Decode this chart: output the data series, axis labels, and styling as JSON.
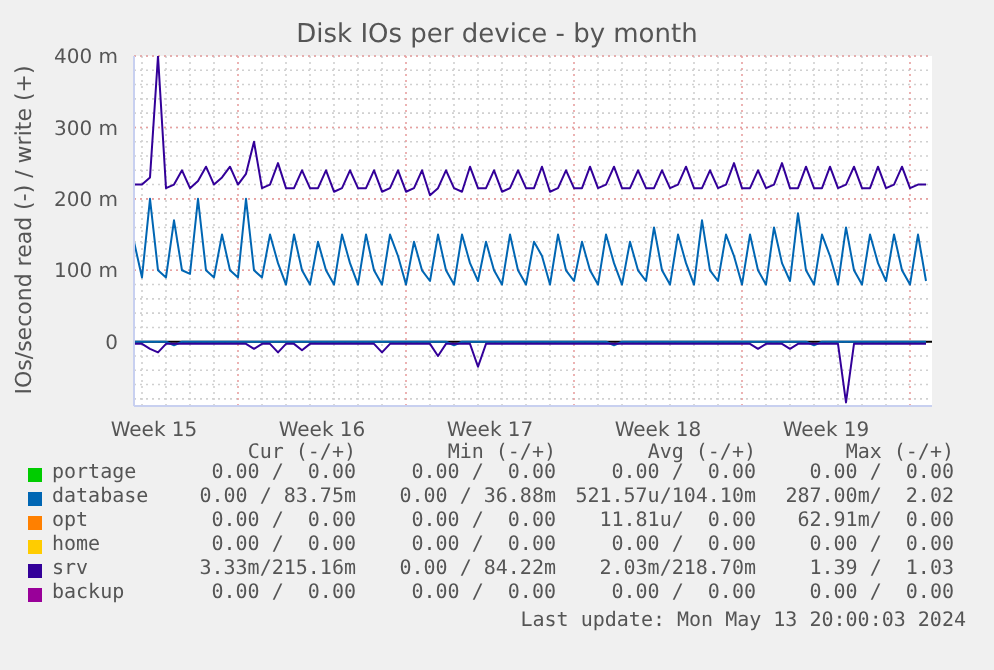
{
  "chart_data": {
    "type": "line",
    "title": "Disk IOs per device - by month",
    "ylabel": "IOs/second read (-) / write (+)",
    "x": [
      "2024-04-10T16:00",
      "2024-04-11T00:00",
      "2024-04-11T08:00",
      "2024-04-11T16:00",
      "2024-04-12T00:00",
      "2024-04-12T08:00",
      "2024-04-12T16:00",
      "2024-04-13T00:00",
      "2024-04-13T08:00",
      "2024-04-13T16:00",
      "2024-04-14T00:00",
      "2024-04-14T08:00",
      "2024-04-14T16:00",
      "2024-04-15T00:00",
      "2024-04-15T08:00",
      "2024-04-15T16:00",
      "2024-04-16T00:00",
      "2024-04-16T08:00",
      "2024-04-16T16:00",
      "2024-04-17T00:00",
      "2024-04-17T08:00",
      "2024-04-17T16:00",
      "2024-04-18T00:00",
      "2024-04-18T08:00",
      "2024-04-18T16:00",
      "2024-04-19T00:00",
      "2024-04-19T08:00",
      "2024-04-19T16:00",
      "2024-04-20T00:00",
      "2024-04-20T08:00",
      "2024-04-20T16:00",
      "2024-04-21T00:00",
      "2024-04-21T08:00",
      "2024-04-21T16:00",
      "2024-04-22T00:00",
      "2024-04-22T08:00",
      "2024-04-22T16:00",
      "2024-04-23T00:00",
      "2024-04-23T08:00",
      "2024-04-23T16:00",
      "2024-04-24T00:00",
      "2024-04-24T08:00",
      "2024-04-24T16:00",
      "2024-04-25T00:00",
      "2024-04-25T08:00",
      "2024-04-25T16:00",
      "2024-04-26T00:00",
      "2024-04-26T08:00",
      "2024-04-26T16:00",
      "2024-04-27T00:00",
      "2024-04-27T08:00",
      "2024-04-27T16:00",
      "2024-04-28T00:00",
      "2024-04-28T08:00",
      "2024-04-28T16:00",
      "2024-04-29T00:00",
      "2024-04-29T08:00",
      "2024-04-29T16:00",
      "2024-04-30T00:00",
      "2024-04-30T08:00",
      "2024-04-30T16:00",
      "2024-05-01T00:00",
      "2024-05-01T08:00",
      "2024-05-01T16:00",
      "2024-05-02T00:00",
      "2024-05-02T08:00",
      "2024-05-02T16:00",
      "2024-05-03T00:00",
      "2024-05-03T08:00",
      "2024-05-03T16:00",
      "2024-05-04T00:00",
      "2024-05-04T08:00",
      "2024-05-04T16:00",
      "2024-05-05T00:00",
      "2024-05-05T08:00",
      "2024-05-05T16:00",
      "2024-05-06T00:00",
      "2024-05-06T08:00",
      "2024-05-06T16:00",
      "2024-05-07T00:00",
      "2024-05-07T08:00",
      "2024-05-07T16:00",
      "2024-05-08T00:00",
      "2024-05-08T08:00",
      "2024-05-08T16:00",
      "2024-05-09T00:00",
      "2024-05-09T08:00",
      "2024-05-09T16:00",
      "2024-05-10T00:00",
      "2024-05-10T08:00",
      "2024-05-10T16:00",
      "2024-05-11T00:00",
      "2024-05-11T08:00",
      "2024-05-11T16:00",
      "2024-05-12T00:00",
      "2024-05-12T08:00",
      "2024-05-12T16:00",
      "2024-05-13T00:00",
      "2024-05-13T08:00",
      "2024-05-13T16:00"
    ],
    "series": [
      {
        "name": "portage",
        "color": "#00cc00",
        "values": [
          null,
          null,
          null,
          null,
          null,
          null,
          null,
          null,
          null,
          null,
          null,
          null,
          null,
          null,
          null,
          null,
          null,
          null,
          null,
          null,
          null,
          null,
          null,
          null,
          null,
          null,
          null,
          null,
          null,
          null,
          null,
          null,
          null,
          null,
          null,
          null,
          null,
          null,
          null,
          null,
          null,
          null,
          null,
          null,
          null,
          null,
          null,
          null,
          null,
          null,
          null,
          null,
          null,
          null,
          null,
          null,
          null,
          null,
          null,
          null,
          null,
          null,
          null,
          null,
          null,
          null,
          null,
          null,
          null,
          null,
          null,
          null,
          null,
          null,
          null,
          null,
          null,
          null,
          null,
          null,
          null,
          null,
          null,
          null,
          null,
          null,
          null,
          null,
          null,
          null,
          null,
          null,
          null,
          null,
          null,
          null,
          null,
          null,
          null,
          null
        ]
      },
      {
        "name": "database",
        "color": "#0066b3",
        "values": [
          140,
          90,
          200,
          100,
          90,
          170,
          100,
          95,
          200,
          100,
          90,
          150,
          100,
          90,
          200,
          100,
          90,
          150,
          110,
          80,
          150,
          100,
          80,
          140,
          100,
          80,
          150,
          110,
          80,
          150,
          100,
          80,
          150,
          120,
          80,
          140,
          100,
          85,
          150,
          100,
          80,
          150,
          110,
          85,
          140,
          100,
          80,
          150,
          100,
          80,
          140,
          120,
          80,
          150,
          100,
          85,
          140,
          100,
          80,
          150,
          110,
          80,
          140,
          100,
          85,
          160,
          100,
          80,
          150,
          110,
          80,
          170,
          100,
          85,
          150,
          120,
          80,
          150,
          100,
          80,
          160,
          110,
          85,
          180,
          100,
          80,
          150,
          120,
          80,
          160,
          100,
          80,
          150,
          110,
          85,
          150,
          100,
          80,
          150,
          85
        ]
      },
      {
        "color": "#0066b3",
        "values": [
          0,
          0,
          0,
          0,
          0,
          -5,
          0,
          0,
          0,
          0,
          0,
          0,
          0,
          0,
          0,
          0,
          0,
          0,
          0,
          0,
          0,
          0,
          0,
          0,
          0,
          0,
          0,
          0,
          0,
          0,
          0,
          0,
          0,
          0,
          0,
          0,
          0,
          0,
          0,
          0,
          -5,
          0,
          0,
          0,
          0,
          0,
          0,
          0,
          0,
          0,
          0,
          0,
          0,
          0,
          0,
          0,
          0,
          0,
          0,
          0,
          -5,
          0,
          0,
          0,
          0,
          0,
          0,
          0,
          0,
          0,
          0,
          0,
          0,
          0,
          0,
          0,
          0,
          0,
          0,
          0,
          0,
          0,
          0,
          0,
          0,
          -5,
          0,
          0,
          0,
          0,
          0,
          0,
          0,
          0,
          0,
          0,
          0,
          0,
          0,
          0
        ]
      },
      {
        "name": "opt",
        "color": "#ff8000",
        "values": [
          null,
          null,
          null,
          null,
          null,
          null,
          null,
          null,
          null,
          null,
          null,
          null,
          null,
          null,
          null,
          null,
          null,
          null,
          null,
          null,
          null,
          null,
          null,
          null,
          null,
          null,
          null,
          null,
          null,
          null,
          null,
          null,
          null,
          null,
          null,
          null,
          null,
          null,
          null,
          null,
          null,
          null,
          null,
          null,
          null,
          null,
          null,
          null,
          null,
          null,
          null,
          null,
          null,
          null,
          null,
          null,
          null,
          null,
          null,
          null,
          null,
          null,
          null,
          null,
          null,
          null,
          null,
          null,
          null,
          null,
          null,
          null,
          null,
          null,
          null,
          null,
          null,
          null,
          null,
          null,
          null,
          null,
          null,
          null,
          null,
          null,
          null,
          null,
          null,
          null,
          null,
          null,
          null,
          null,
          null,
          null,
          null,
          null,
          null,
          null
        ]
      },
      {
        "name": "home",
        "color": "#ffcc00",
        "values": [
          null,
          null,
          null,
          null,
          null,
          null,
          null,
          null,
          null,
          null,
          null,
          null,
          null,
          null,
          null,
          null,
          null,
          null,
          null,
          null,
          null,
          null,
          null,
          null,
          null,
          null,
          null,
          null,
          null,
          null,
          null,
          null,
          null,
          null,
          null,
          null,
          null,
          null,
          null,
          null,
          null,
          null,
          null,
          null,
          null,
          null,
          null,
          null,
          null,
          null,
          null,
          null,
          null,
          null,
          null,
          null,
          null,
          null,
          null,
          null,
          null,
          null,
          null,
          null,
          null,
          null,
          null,
          null,
          null,
          null,
          null,
          null,
          null,
          null,
          null,
          null,
          null,
          null,
          null,
          null,
          null,
          null,
          null,
          null,
          null,
          null,
          null,
          null,
          null,
          null,
          null,
          null,
          null,
          null,
          null,
          null,
          null,
          null,
          null,
          null
        ]
      },
      {
        "name": "srv",
        "color": "#330099",
        "values": [
          220,
          220,
          230,
          400,
          215,
          220,
          240,
          215,
          225,
          245,
          220,
          230,
          245,
          220,
          235,
          280,
          215,
          220,
          250,
          215,
          215,
          240,
          215,
          215,
          240,
          210,
          215,
          240,
          215,
          215,
          240,
          210,
          215,
          240,
          210,
          215,
          240,
          205,
          215,
          240,
          215,
          210,
          245,
          215,
          215,
          240,
          210,
          215,
          240,
          215,
          215,
          245,
          210,
          215,
          240,
          215,
          215,
          245,
          215,
          220,
          245,
          215,
          215,
          240,
          215,
          215,
          240,
          215,
          220,
          245,
          215,
          215,
          240,
          215,
          220,
          250,
          215,
          215,
          240,
          215,
          220,
          250,
          215,
          215,
          245,
          215,
          215,
          245,
          215,
          220,
          245,
          215,
          215,
          245,
          215,
          220,
          245,
          215,
          220,
          220
        ]
      },
      {
        "color": "#330099",
        "values": [
          -3,
          -3,
          -10,
          -15,
          -3,
          -3,
          -3,
          -3,
          -3,
          -3,
          -3,
          -3,
          -3,
          -3,
          -3,
          -10,
          -3,
          -3,
          -15,
          -3,
          -3,
          -12,
          -3,
          -3,
          -3,
          -3,
          -3,
          -3,
          -3,
          -3,
          -3,
          -15,
          -3,
          -3,
          -3,
          -3,
          -3,
          -3,
          -20,
          -3,
          -3,
          -3,
          -3,
          -35,
          -3,
          -3,
          -3,
          -3,
          -3,
          -3,
          -3,
          -3,
          -3,
          -3,
          -3,
          -3,
          -3,
          -3,
          -3,
          -3,
          -3,
          -3,
          -3,
          -3,
          -3,
          -3,
          -3,
          -3,
          -3,
          -3,
          -3,
          -3,
          -3,
          -3,
          -3,
          -3,
          -3,
          -3,
          -10,
          -3,
          -3,
          -3,
          -10,
          -3,
          -3,
          -3,
          -3,
          -3,
          -3,
          -85,
          -3,
          -3,
          -3,
          -3,
          -3,
          -3,
          -3,
          -3,
          -3,
          -3
        ]
      },
      {
        "name": "backup",
        "color": "#990099",
        "values": [
          null,
          null,
          null,
          null,
          null,
          null,
          null,
          null,
          null,
          null,
          null,
          null,
          null,
          null,
          null,
          null,
          null,
          null,
          null,
          null,
          null,
          null,
          null,
          null,
          null,
          null,
          null,
          null,
          null,
          null,
          null,
          null,
          null,
          null,
          null,
          null,
          null,
          null,
          null,
          null,
          null,
          null,
          null,
          null,
          null,
          null,
          null,
          null,
          null,
          null,
          null,
          null,
          null,
          null,
          null,
          null,
          null,
          null,
          null,
          null,
          null,
          null,
          null,
          null,
          null,
          null,
          null,
          null,
          null,
          null,
          null,
          null,
          null,
          null,
          null,
          null,
          null,
          null,
          null,
          null,
          null,
          null,
          null,
          null,
          null,
          null,
          null,
          null,
          null,
          null,
          null,
          null,
          null,
          null,
          null,
          null,
          null,
          null,
          null,
          null
        ]
      }
    ],
    "xlim": [
      "2024-04-10T16:00",
      "2024-05-13T22:00"
    ],
    "xticks": [
      {
        "value": "2024-04-11T12:00",
        "label": "Week 15"
      },
      {
        "value": "2024-04-18T12:00",
        "label": "Week 16"
      },
      {
        "value": "2024-04-25T12:00",
        "label": "Week 17"
      },
      {
        "value": "2024-05-02T12:00",
        "label": "Week 18"
      },
      {
        "value": "2024-05-09T12:00",
        "label": "Week 19"
      }
    ],
    "ylim": [
      -90,
      400
    ],
    "yticks": [
      0,
      {
        "value": 100,
        "label": "100 m"
      },
      {
        "value": 200,
        "label": "200 m"
      },
      {
        "value": 300,
        "label": "300 m"
      },
      {
        "value": 400,
        "label": "400 m"
      }
    ],
    "ref_lines": [
      {
        "axis": "y",
        "value": 0,
        "color": "#000000"
      }
    ],
    "grid": true,
    "legend": "bottom",
    "marker": "none",
    "line_style": "solid",
    "annotations": [
      "Cur (-/+)",
      "Min (-/+)",
      "Avg (-/+)",
      "Max (-/+)",
      "0.00 /  0.00",
      "0.00 /  0.00",
      "0.00 /  0.00",
      "0.00 /  0.00",
      "0.00 / 83.75m",
      "0.00 / 36.88m",
      "521.57u/104.10m",
      "287.00m/  2.02",
      "0.00 /  0.00",
      "0.00 /  0.00",
      "11.81u/  0.00",
      "62.91m/  0.00",
      "0.00 /  0.00",
      "0.00 /  0.00",
      "0.00 /  0.00",
      "0.00 /  0.00",
      "3.33m/215.16m",
      "0.00 / 84.22m",
      "2.03m/218.70m",
      "1.39 /  1.03",
      "0.00 /  0.00",
      "0.00 /  0.00",
      "0.00 /  0.00",
      "0.00 /  0.00",
      "Last update: Mon May 13 20:00:03 2024"
    ]
  }
}
